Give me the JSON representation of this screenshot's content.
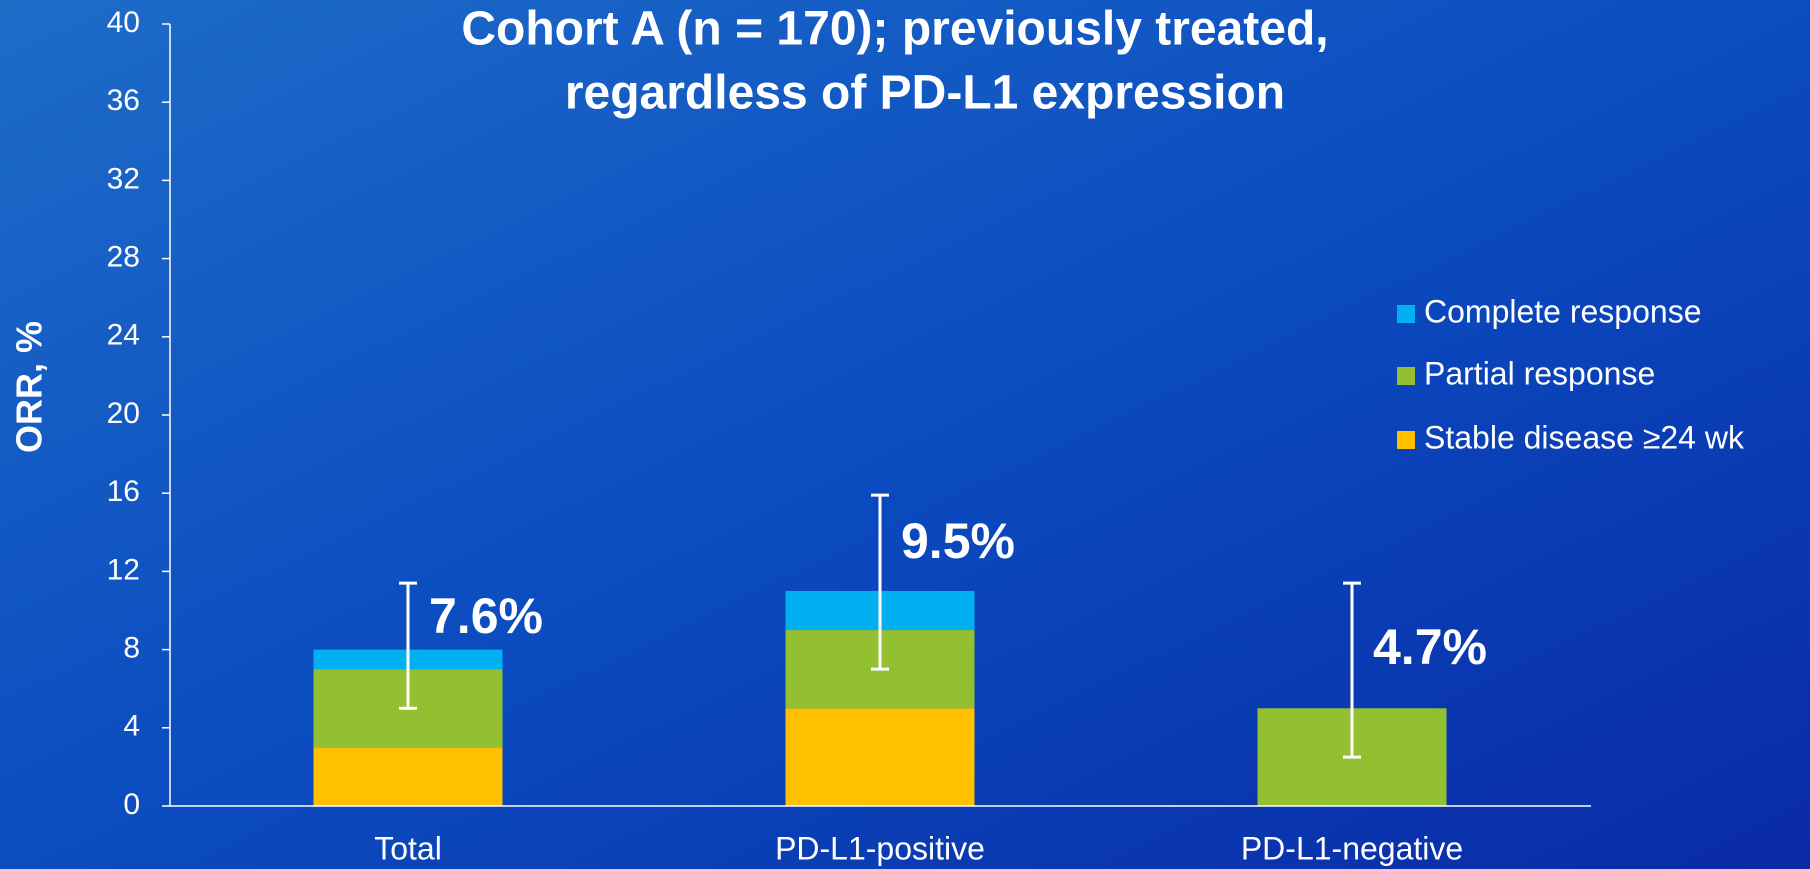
{
  "chart_data": {
    "type": "stacked_bar",
    "title": [
      "Cohort A (n = 170); previously treated,",
      "regardless of PD-L1 expression"
    ],
    "ylabel": "ORR, %",
    "categories": [
      "Total",
      "PD-L1-positive",
      "PD-L1-negative"
    ],
    "series": [
      {
        "name": "Complete response",
        "color": "#00b0f0",
        "values": [
          1,
          2,
          0
        ]
      },
      {
        "name": "Partial response",
        "color": "#92c030",
        "values": [
          4,
          4,
          5
        ]
      },
      {
        "name": "Stable disease ≥24 wk",
        "color": "#ffc000",
        "values": [
          3,
          5,
          0
        ]
      }
    ],
    "orr": [
      7.6,
      9.5,
      4.7
    ],
    "orr_labels": [
      "7.6%",
      "9.5%",
      "4.7%"
    ],
    "error_low": [
      5,
      7,
      2.5
    ],
    "error_high": [
      11.4,
      15.9,
      11.4
    ],
    "ylim": [
      0,
      40
    ],
    "yticks": [
      0,
      4,
      8,
      12,
      16,
      20,
      24,
      28,
      32,
      36,
      40
    ],
    "legend": "right"
  }
}
